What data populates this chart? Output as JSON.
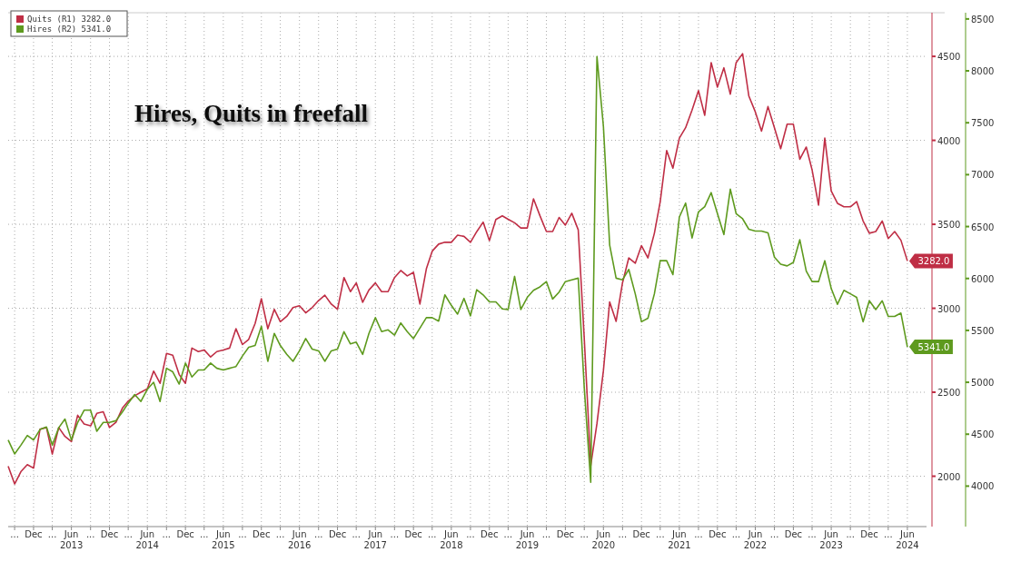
{
  "chart_data": {
    "type": "line",
    "title": "Hires, Quits in freefall",
    "x": [
      "2012-08",
      "2012-09",
      "2012-10",
      "2012-11",
      "2012-12",
      "2013-01",
      "2013-02",
      "2013-03",
      "2013-04",
      "2013-05",
      "2013-06",
      "2013-07",
      "2013-08",
      "2013-09",
      "2013-10",
      "2013-11",
      "2013-12",
      "2014-01",
      "2014-02",
      "2014-03",
      "2014-04",
      "2014-05",
      "2014-06",
      "2014-07",
      "2014-08",
      "2014-09",
      "2014-10",
      "2014-11",
      "2014-12",
      "2015-01",
      "2015-02",
      "2015-03",
      "2015-04",
      "2015-05",
      "2015-06",
      "2015-07",
      "2015-08",
      "2015-09",
      "2015-10",
      "2015-11",
      "2015-12",
      "2016-01",
      "2016-02",
      "2016-03",
      "2016-04",
      "2016-05",
      "2016-06",
      "2016-07",
      "2016-08",
      "2016-09",
      "2016-10",
      "2016-11",
      "2016-12",
      "2017-01",
      "2017-02",
      "2017-03",
      "2017-04",
      "2017-05",
      "2017-06",
      "2017-07",
      "2017-08",
      "2017-09",
      "2017-10",
      "2017-11",
      "2017-12",
      "2018-01",
      "2018-02",
      "2018-03",
      "2018-04",
      "2018-05",
      "2018-06",
      "2018-07",
      "2018-08",
      "2018-09",
      "2018-10",
      "2018-11",
      "2018-12",
      "2019-01",
      "2019-02",
      "2019-03",
      "2019-04",
      "2019-05",
      "2019-06",
      "2019-07",
      "2019-08",
      "2019-09",
      "2019-10",
      "2019-11",
      "2019-12",
      "2020-01",
      "2020-02",
      "2020-03",
      "2020-04",
      "2020-05",
      "2020-06",
      "2020-07",
      "2020-08",
      "2020-09",
      "2020-10",
      "2020-11",
      "2020-12",
      "2021-01",
      "2021-02",
      "2021-03",
      "2021-04",
      "2021-05",
      "2021-06",
      "2021-07",
      "2021-08",
      "2021-09",
      "2021-10",
      "2021-11",
      "2021-12",
      "2022-01",
      "2022-02",
      "2022-03",
      "2022-04",
      "2022-05",
      "2022-06",
      "2022-07",
      "2022-08",
      "2022-09",
      "2022-10",
      "2022-11",
      "2022-12",
      "2023-01",
      "2023-02",
      "2023-03",
      "2023-04",
      "2023-05",
      "2023-06",
      "2023-07",
      "2023-08",
      "2023-09",
      "2023-10",
      "2023-11",
      "2023-12",
      "2024-01",
      "2024-02",
      "2024-03",
      "2024-04",
      "2024-05",
      "2024-06"
    ],
    "series": [
      {
        "name": "Quits (R1) 3282.0",
        "color": "#bf2e45",
        "values": [
          2059,
          1954,
          2027,
          2069,
          2048,
          2280,
          2290,
          2132,
          2290,
          2237,
          2206,
          2363,
          2311,
          2300,
          2374,
          2384,
          2290,
          2321,
          2405,
          2447,
          2479,
          2500,
          2521,
          2626,
          2553,
          2731,
          2721,
          2605,
          2553,
          2763,
          2742,
          2752,
          2710,
          2742,
          2752,
          2763,
          2878,
          2784,
          2815,
          2910,
          3057,
          2878,
          2994,
          2920,
          2952,
          3004,
          3015,
          2973,
          3004,
          3046,
          3078,
          3025,
          2994,
          3183,
          3099,
          3151,
          3036,
          3109,
          3151,
          3099,
          3099,
          3183,
          3225,
          3193,
          3214,
          3025,
          3235,
          3340,
          3382,
          3393,
          3393,
          3435,
          3428,
          3393,
          3456,
          3513,
          3403,
          3529,
          3550,
          3530,
          3509,
          3478,
          3478,
          3652,
          3551,
          3457,
          3457,
          3541,
          3495,
          3566,
          3467,
          2818,
          2063,
          2314,
          2629,
          3038,
          2922,
          3153,
          3300,
          3268,
          3373,
          3300,
          3447,
          3635,
          3939,
          3834,
          4013,
          4075,
          4180,
          4296,
          4149,
          4463,
          4317,
          4432,
          4275,
          4463,
          4516,
          4264,
          4170,
          4055,
          4201,
          4075,
          3950,
          4096,
          4096,
          3887,
          3960,
          3824,
          3614,
          4013,
          3698,
          3625,
          3604,
          3604,
          3635,
          3520,
          3447,
          3457,
          3520,
          3415,
          3457,
          3405,
          3282
        ],
        "value_labels": [
          null,
          null,
          null,
          null,
          null,
          null,
          null,
          null,
          null,
          null,
          null,
          null,
          null,
          null,
          null,
          null,
          null,
          null,
          null,
          null,
          null,
          null,
          null,
          null,
          null,
          null,
          null,
          null,
          null,
          null,
          null,
          null,
          null,
          null,
          null,
          null,
          null,
          null,
          null,
          null,
          null,
          null,
          null,
          null,
          null,
          null,
          null,
          null,
          null,
          null,
          null,
          null,
          null,
          null,
          null,
          null,
          null,
          null,
          null,
          null,
          null,
          null,
          null,
          null,
          null,
          null,
          null,
          null,
          null,
          null,
          null,
          null,
          null,
          null,
          null,
          null,
          null,
          null,
          null,
          null,
          null,
          null,
          null,
          null,
          null,
          null,
          null,
          null,
          null,
          null,
          null,
          null,
          null,
          null,
          null,
          null,
          null,
          null,
          null,
          null,
          null,
          null,
          null,
          null,
          null,
          null,
          null,
          null,
          null,
          null,
          null,
          null,
          null,
          null,
          null,
          null,
          null,
          null,
          null,
          null,
          null,
          null,
          null,
          null,
          null,
          null,
          null,
          null,
          null,
          null,
          null,
          null,
          null,
          null,
          null,
          null,
          null,
          null,
          null,
          null,
          null,
          null,
          "3282.0"
        ]
      },
      {
        "name": "Hires (R2) 5341.0",
        "color": "#5e9a1e",
        "axis": "y2",
        "values": [
          4444,
          4310,
          4394,
          4488,
          4444,
          4545,
          4569,
          4394,
          4562,
          4646,
          4444,
          4613,
          4731,
          4731,
          4529,
          4613,
          4613,
          4630,
          4714,
          4798,
          4882,
          4815,
          4933,
          5000,
          4815,
          5135,
          5101,
          4983,
          5185,
          5051,
          5118,
          5118,
          5185,
          5135,
          5118,
          5135,
          5152,
          5253,
          5337,
          5354,
          5539,
          5202,
          5471,
          5354,
          5269,
          5202,
          5303,
          5421,
          5320,
          5303,
          5202,
          5303,
          5320,
          5488,
          5370,
          5387,
          5269,
          5471,
          5623,
          5488,
          5505,
          5455,
          5572,
          5488,
          5421,
          5522,
          5623,
          5623,
          5589,
          5842,
          5741,
          5657,
          5808,
          5640,
          5892,
          5842,
          5774,
          5774,
          5707,
          5701,
          6020,
          5701,
          5818,
          5886,
          5919,
          5970,
          5802,
          5869,
          5970,
          5987,
          6003,
          4945,
          4037,
          8138,
          7465,
          6323,
          6003,
          5987,
          6087,
          5852,
          5583,
          5617,
          5852,
          6171,
          6171,
          6037,
          6592,
          6726,
          6390,
          6642,
          6692,
          6827,
          6625,
          6423,
          6860,
          6625,
          6575,
          6474,
          6457,
          6457,
          6440,
          6205,
          6138,
          6121,
          6155,
          6373,
          6071,
          5970,
          5970,
          6171,
          5903,
          5751,
          5886,
          5852,
          5818,
          5583,
          5785,
          5701,
          5785,
          5634,
          5634,
          5667,
          5341
        ],
        "value_labels": [
          null,
          null,
          null,
          null,
          null,
          null,
          null,
          null,
          null,
          null,
          null,
          null,
          null,
          null,
          null,
          null,
          null,
          null,
          null,
          null,
          null,
          null,
          null,
          null,
          null,
          null,
          null,
          null,
          null,
          null,
          null,
          null,
          null,
          null,
          null,
          null,
          null,
          null,
          null,
          null,
          null,
          null,
          null,
          null,
          null,
          null,
          null,
          null,
          null,
          null,
          null,
          null,
          null,
          null,
          null,
          null,
          null,
          null,
          null,
          null,
          null,
          null,
          null,
          null,
          null,
          null,
          null,
          null,
          null,
          null,
          null,
          null,
          null,
          null,
          null,
          null,
          null,
          null,
          null,
          null,
          null,
          null,
          null,
          null,
          null,
          null,
          null,
          null,
          null,
          null,
          null,
          null,
          null,
          null,
          null,
          null,
          null,
          null,
          null,
          null,
          null,
          null,
          null,
          null,
          null,
          null,
          null,
          null,
          null,
          null,
          null,
          null,
          null,
          null,
          null,
          null,
          null,
          null,
          null,
          null,
          null,
          null,
          null,
          null,
          null,
          null,
          null,
          null,
          null,
          null,
          null,
          null,
          null,
          null,
          null,
          null,
          null,
          null,
          null,
          null,
          null,
          null,
          "5341.0"
        ]
      }
    ],
    "xlim": [
      "2012-08",
      "2024-09"
    ],
    "xticks": [
      {
        "value": "2012-09",
        "label": "..."
      },
      {
        "value": "2012-12",
        "label": "Dec"
      },
      {
        "value": "2013-03",
        "label": "..."
      },
      {
        "value": "2013-06",
        "label": "Jun\n2013"
      },
      {
        "value": "2013-09",
        "label": "..."
      },
      {
        "value": "2013-12",
        "label": "Dec"
      },
      {
        "value": "2014-03",
        "label": "..."
      },
      {
        "value": "2014-06",
        "label": "Jun\n2014"
      },
      {
        "value": "2014-09",
        "label": "..."
      },
      {
        "value": "2014-12",
        "label": "Dec"
      },
      {
        "value": "2015-03",
        "label": "..."
      },
      {
        "value": "2015-06",
        "label": "Jun\n2015"
      },
      {
        "value": "2015-09",
        "label": "..."
      },
      {
        "value": "2015-12",
        "label": "Dec"
      },
      {
        "value": "2016-03",
        "label": "..."
      },
      {
        "value": "2016-06",
        "label": "Jun\n2016"
      },
      {
        "value": "2016-09",
        "label": "..."
      },
      {
        "value": "2016-12",
        "label": "Dec"
      },
      {
        "value": "2017-03",
        "label": "..."
      },
      {
        "value": "2017-06",
        "label": "Jun\n2017"
      },
      {
        "value": "2017-09",
        "label": "..."
      },
      {
        "value": "2017-12",
        "label": "Dec"
      },
      {
        "value": "2018-03",
        "label": "..."
      },
      {
        "value": "2018-06",
        "label": "Jun\n2018"
      },
      {
        "value": "2018-09",
        "label": "..."
      },
      {
        "value": "2018-12",
        "label": "Dec"
      },
      {
        "value": "2019-03",
        "label": "..."
      },
      {
        "value": "2019-06",
        "label": "Jun\n2019"
      },
      {
        "value": "2019-09",
        "label": "..."
      },
      {
        "value": "2019-12",
        "label": "Dec"
      },
      {
        "value": "2020-03",
        "label": "..."
      },
      {
        "value": "2020-06",
        "label": "Jun\n2020"
      },
      {
        "value": "2020-09",
        "label": "..."
      },
      {
        "value": "2020-12",
        "label": "Dec"
      },
      {
        "value": "2021-03",
        "label": "..."
      },
      {
        "value": "2021-06",
        "label": "Jun\n2021"
      },
      {
        "value": "2021-09",
        "label": "..."
      },
      {
        "value": "2021-12",
        "label": "Dec"
      },
      {
        "value": "2022-03",
        "label": "..."
      },
      {
        "value": "2022-06",
        "label": "Jun\n2022"
      },
      {
        "value": "2022-09",
        "label": "..."
      },
      {
        "value": "2022-12",
        "label": "Dec"
      },
      {
        "value": "2023-03",
        "label": "..."
      },
      {
        "value": "2023-06",
        "label": "Jun\n2023"
      },
      {
        "value": "2023-09",
        "label": "..."
      },
      {
        "value": "2023-12",
        "label": "Dec"
      },
      {
        "value": "2024-03",
        "label": "..."
      },
      {
        "value": "2024-06",
        "label": "Jun\n2024"
      }
    ],
    "ylim": [
      1700,
      4760
    ],
    "yticks": [
      2000,
      2500,
      3000,
      3500,
      4000,
      4500
    ],
    "y2lim": [
      3610,
      8560
    ],
    "y2ticks": [
      4000,
      4500,
      5000,
      5500,
      6000,
      6500,
      7000,
      7500,
      8000,
      8500
    ],
    "grid": true,
    "legend": "top left",
    "line_style": "solid",
    "marker": "none"
  }
}
